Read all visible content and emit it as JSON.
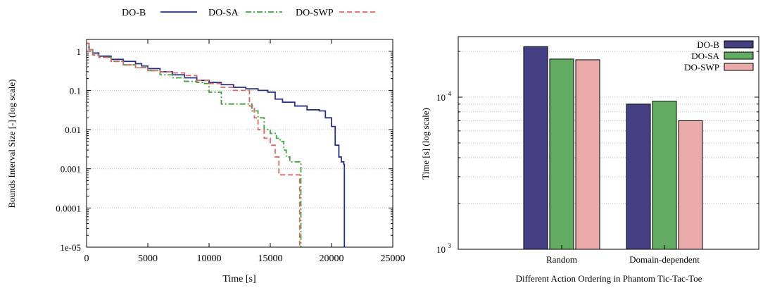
{
  "colors": {
    "DO-B": "#283084",
    "DO-SA": "#3ea33e",
    "DO-SWP": "#e66464",
    "bar_DO-B": "#453f83",
    "bar_DO-SA": "#61ab63",
    "bar_DO-SWP": "#eaaaaa"
  },
  "chart_data": [
    {
      "type": "line",
      "title": "",
      "xlabel": "Time [s]",
      "ylabel": "Bounds Interval Size [-] (log scale)",
      "yscale": "log",
      "xlim": [
        0,
        25000
      ],
      "ylim": [
        1e-05,
        2
      ],
      "x_ticks": [
        0,
        5000,
        10000,
        15000,
        20000,
        25000
      ],
      "y_ticks": [
        1,
        0.1,
        0.01,
        0.001,
        0.0001,
        1e-05
      ],
      "y_tick_labels": [
        "1",
        "0.1",
        "0.01",
        "0.001",
        "0.0001",
        "1e-05"
      ],
      "grid": "horizontal dotted",
      "legend": "top, outside",
      "series": [
        {
          "name": "DO-B",
          "style": "solid",
          "x": [
            0,
            200,
            500,
            1000,
            2000,
            3000,
            4000,
            4500,
            5000,
            6000,
            7000,
            8000,
            9000,
            10000,
            11000,
            12000,
            13000,
            14000,
            14800,
            15400,
            16000,
            17000,
            18000,
            19000,
            19500,
            20000,
            20300,
            20600,
            20800,
            21000,
            21050,
            21050
          ],
          "y": [
            1.6,
            1.1,
            0.9,
            0.75,
            0.62,
            0.55,
            0.48,
            0.42,
            0.36,
            0.3,
            0.25,
            0.21,
            0.18,
            0.16,
            0.14,
            0.12,
            0.11,
            0.1,
            0.09,
            0.06,
            0.05,
            0.04,
            0.032,
            0.03,
            0.02,
            0.012,
            0.004,
            0.002,
            0.0015,
            0.0013,
            0.0013,
            1e-05
          ]
        },
        {
          "name": "DO-SA",
          "style": "dash-dot",
          "x": [
            0,
            200,
            500,
            1000,
            2000,
            3000,
            4000,
            5000,
            6000,
            7000,
            8000,
            9000,
            9500,
            10000,
            11000,
            12000,
            13000,
            13500,
            14000,
            14500,
            15000,
            15500,
            15800,
            16100,
            16300,
            16600,
            17000,
            17400,
            17500,
            17500
          ],
          "y": [
            1.6,
            1.1,
            0.8,
            0.7,
            0.55,
            0.45,
            0.38,
            0.32,
            0.25,
            0.21,
            0.17,
            0.16,
            0.15,
            0.09,
            0.045,
            0.045,
            0.045,
            0.03,
            0.02,
            0.01,
            0.008,
            0.006,
            0.005,
            0.003,
            0.002,
            0.0015,
            0.0015,
            0.0015,
            0.001,
            1e-05
          ]
        },
        {
          "name": "DO-SWP",
          "style": "dashed",
          "x": [
            0,
            200,
            500,
            1000,
            2000,
            3000,
            4000,
            5000,
            6000,
            7000,
            8000,
            9000,
            10000,
            11000,
            12000,
            13000,
            13300,
            13700,
            14000,
            14500,
            15000,
            15400,
            15700,
            16000,
            17000,
            17400,
            17400
          ],
          "y": [
            1.6,
            1.1,
            0.8,
            0.7,
            0.55,
            0.45,
            0.38,
            0.32,
            0.3,
            0.28,
            0.24,
            0.18,
            0.15,
            0.12,
            0.1,
            0.1,
            0.04,
            0.02,
            0.01,
            0.006,
            0.004,
            0.002,
            0.0007,
            0.0007,
            0.0007,
            0.0007,
            1e-05
          ]
        }
      ]
    },
    {
      "type": "bar",
      "title": "",
      "xlabel": "Different Action Ordering in Phantom Tic-Tac-Toe",
      "ylabel": "Time [s] (log scale)",
      "yscale": "log",
      "ylim": [
        1000,
        25000
      ],
      "y_tick_labels": [
        {
          "value": 10000,
          "base": "10",
          "exp": "4"
        },
        {
          "value": 1000,
          "base": "10",
          "exp": "3"
        }
      ],
      "categories": [
        "Random",
        "Domain-dependent"
      ],
      "legend": "top-right",
      "grid": "horizontal dotted",
      "series": [
        {
          "name": "DO-B",
          "values": [
            21500,
            9000
          ]
        },
        {
          "name": "DO-SA",
          "values": [
            17800,
            9400
          ]
        },
        {
          "name": "DO-SWP",
          "values": [
            17600,
            7000
          ]
        }
      ]
    }
  ]
}
